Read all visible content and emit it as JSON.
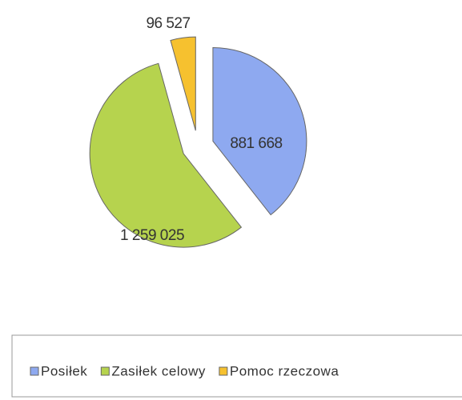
{
  "chart_data": {
    "type": "pie",
    "categories": [
      "Posiłek",
      "Zasiłek celowy",
      "Pomoc rzeczowa"
    ],
    "values": [
      881668,
      1259025,
      96527
    ],
    "value_labels": [
      "881 668",
      "1 259 025",
      "96 527"
    ],
    "colors": [
      "#8ea9f0",
      "#b6d34e",
      "#f6c12f"
    ],
    "legend": "bottom"
  }
}
